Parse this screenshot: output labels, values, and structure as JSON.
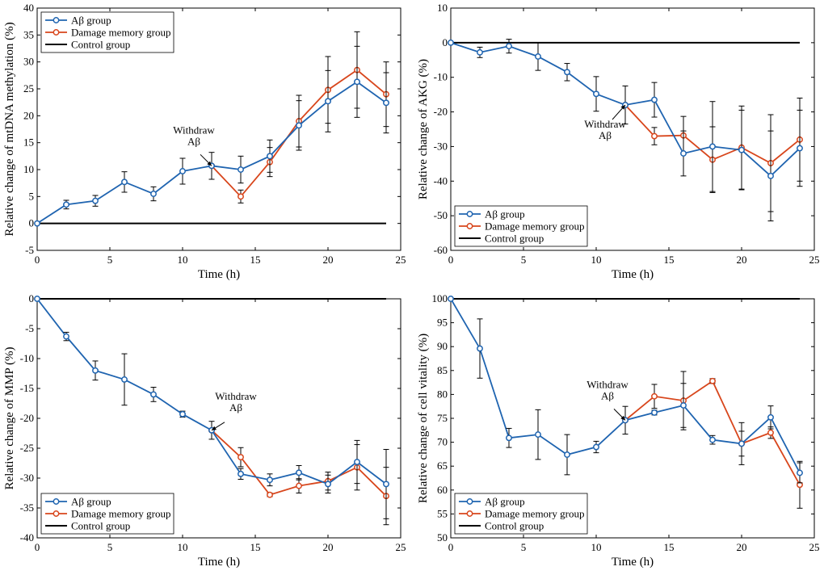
{
  "colors": {
    "abeta": "#1f64b0",
    "damage": "#d8461c",
    "control": "#000000",
    "errorbar": "#000000"
  },
  "chart_data": [
    {
      "type": "line",
      "id": "mtdna",
      "xlabel": "Time (h)",
      "ylabel": "Relative change of mtDNA methylation (%)",
      "xlim": [
        0,
        25
      ],
      "ylim": [
        -5,
        40
      ],
      "xticks": [
        0,
        5,
        10,
        15,
        20,
        25
      ],
      "yticks": [
        -5,
        0,
        5,
        10,
        15,
        20,
        25,
        30,
        35,
        40
      ],
      "legend_position": "top-left",
      "legend": [
        "Aβ group",
        "Damage memory group",
        "Control group"
      ],
      "annotation": {
        "lines": [
          "Withdraw",
          "Aβ"
        ],
        "x": 12,
        "y": 10.7,
        "placement": "above-left"
      },
      "series": [
        {
          "name": "Aβ group",
          "key": "abeta",
          "x": [
            0,
            2,
            4,
            6,
            8,
            10,
            12,
            14,
            16,
            18,
            20,
            22,
            24
          ],
          "y": [
            0,
            3.5,
            4.2,
            7.7,
            5.5,
            9.7,
            10.7,
            10.0,
            12.5,
            18.2,
            22.7,
            26.3,
            22.4
          ],
          "err": [
            0,
            0.8,
            1.0,
            1.9,
            1.3,
            2.4,
            2.5,
            2.5,
            3.0,
            4.6,
            5.7,
            6.6,
            5.6
          ]
        },
        {
          "name": "Damage memory group",
          "key": "damage",
          "x": [
            12,
            14,
            16,
            18,
            20,
            22,
            24
          ],
          "y": [
            10.7,
            5.0,
            11.4,
            19.0,
            24.8,
            28.5,
            24.0
          ],
          "err": [
            0,
            1.2,
            2.7,
            4.8,
            6.2,
            7.1,
            6.0
          ]
        },
        {
          "name": "Control group",
          "key": "control",
          "x": [
            0,
            24
          ],
          "y": [
            0,
            0
          ]
        }
      ]
    },
    {
      "type": "line",
      "id": "akg",
      "xlabel": "Time (h)",
      "ylabel": "Relative change of AKG (%)",
      "xlim": [
        0,
        25
      ],
      "ylim": [
        -60,
        10
      ],
      "xticks": [
        0,
        5,
        10,
        15,
        20,
        25
      ],
      "yticks": [
        -60,
        -50,
        -40,
        -30,
        -20,
        -10,
        0,
        10
      ],
      "legend_position": "bottom-left",
      "legend": [
        "Aβ group",
        "Damage memory group",
        "Control group"
      ],
      "annotation": {
        "lines": [
          "Withdraw",
          "Aβ"
        ],
        "x": 12,
        "y": -18,
        "placement": "below-left"
      },
      "series": [
        {
          "name": "Aβ group",
          "key": "abeta",
          "x": [
            0,
            2,
            4,
            6,
            8,
            10,
            12,
            14,
            16,
            18,
            20,
            22,
            24
          ],
          "y": [
            0,
            -2.8,
            -1.0,
            -4.0,
            -8.5,
            -14.8,
            -18.0,
            -16.5,
            -32.0,
            -30.0,
            -31.0,
            -38.5,
            -30.5
          ],
          "err": [
            0,
            1.5,
            2.0,
            4.0,
            2.5,
            5.0,
            5.5,
            5.0,
            6.5,
            13.0,
            11.5,
            13.0,
            11.0
          ]
        },
        {
          "name": "Damage memory group",
          "key": "damage",
          "x": [
            12,
            14,
            16,
            18,
            20,
            22,
            24
          ],
          "y": [
            -18.0,
            -27.0,
            -26.8,
            -33.8,
            -30.3,
            -34.8,
            -28.0
          ],
          "err": [
            0,
            2.5,
            5.5,
            9.5,
            12.0,
            14.0,
            12.0
          ]
        },
        {
          "name": "Control group",
          "key": "control",
          "x": [
            0,
            24
          ],
          "y": [
            0,
            0
          ]
        }
      ]
    },
    {
      "type": "line",
      "id": "mmp",
      "xlabel": "Time (h)",
      "ylabel": "Relative change of MMP (%)",
      "xlim": [
        0,
        25
      ],
      "ylim": [
        -40,
        0
      ],
      "xticks": [
        0,
        5,
        10,
        15,
        20,
        25
      ],
      "yticks": [
        -40,
        -35,
        -30,
        -25,
        -20,
        -15,
        -10,
        -5,
        0
      ],
      "legend_position": "bottom-left",
      "legend": [
        "Aβ group",
        "Damage memory group",
        "Control group"
      ],
      "annotation": {
        "lines": [
          "Withdraw",
          "Aβ"
        ],
        "x": 12,
        "y": -22,
        "placement": "above-right"
      },
      "series": [
        {
          "name": "Aβ group",
          "key": "abeta",
          "x": [
            0,
            2,
            4,
            6,
            8,
            10,
            12,
            14,
            16,
            18,
            20,
            22,
            24
          ],
          "y": [
            0,
            -6.3,
            -12.0,
            -13.5,
            -16.0,
            -19.3,
            -22.0,
            -29.3,
            -30.3,
            -29.1,
            -31.0,
            -27.3,
            -31.0
          ],
          "err": [
            0,
            0.7,
            1.6,
            4.3,
            1.2,
            0.5,
            1.5,
            0.9,
            1.0,
            1.2,
            1.5,
            3.6,
            5.8
          ]
        },
        {
          "name": "Damage memory group",
          "key": "damage",
          "x": [
            12,
            14,
            16,
            18,
            20,
            22,
            24
          ],
          "y": [
            -22.0,
            -26.5,
            -32.8,
            -31.3,
            -30.5,
            -28.2,
            -33.0
          ],
          "err": [
            0,
            1.6,
            0.3,
            1.2,
            1.5,
            3.8,
            4.8
          ]
        },
        {
          "name": "Control group",
          "key": "control",
          "x": [
            0,
            24
          ],
          "y": [
            0,
            0
          ]
        }
      ]
    },
    {
      "type": "line",
      "id": "vitality",
      "xlabel": "Time (h)",
      "ylabel": "Relative change of cell vitality (%)",
      "xlim": [
        0,
        25
      ],
      "ylim": [
        50,
        100
      ],
      "xticks": [
        0,
        5,
        10,
        15,
        20,
        25
      ],
      "yticks": [
        50,
        55,
        60,
        65,
        70,
        75,
        80,
        85,
        90,
        95,
        100
      ],
      "legend_position": "bottom-left",
      "legend": [
        "Aβ group",
        "Damage memory group",
        "Control group"
      ],
      "annotation": {
        "lines": [
          "Withdraw",
          "Aβ"
        ],
        "x": 12,
        "y": 74.6,
        "placement": "above-left"
      },
      "series": [
        {
          "name": "Aβ group",
          "key": "abeta",
          "x": [
            0,
            2,
            4,
            6,
            8,
            10,
            12,
            14,
            16,
            18,
            20,
            22,
            24
          ],
          "y": [
            100,
            89.6,
            70.9,
            71.6,
            67.4,
            69.0,
            74.6,
            76.2,
            77.7,
            70.5,
            69.7,
            75.2,
            63.6
          ],
          "err": [
            0,
            6.2,
            2.0,
            5.2,
            4.2,
            1.2,
            2.9,
            0.5,
            4.6,
            0.9,
            4.4,
            2.4,
            2.1
          ]
        },
        {
          "name": "Damage memory group",
          "key": "damage",
          "x": [
            12,
            14,
            16,
            18,
            20,
            22,
            24
          ],
          "y": [
            74.6,
            79.6,
            78.7,
            82.8,
            69.7,
            72.0,
            61.1
          ],
          "err": [
            0,
            2.5,
            6.1,
            0.5,
            2.6,
            1.2,
            4.9
          ]
        },
        {
          "name": "Control group",
          "key": "control",
          "x": [
            0,
            24
          ],
          "y": [
            100,
            100
          ]
        }
      ]
    }
  ]
}
